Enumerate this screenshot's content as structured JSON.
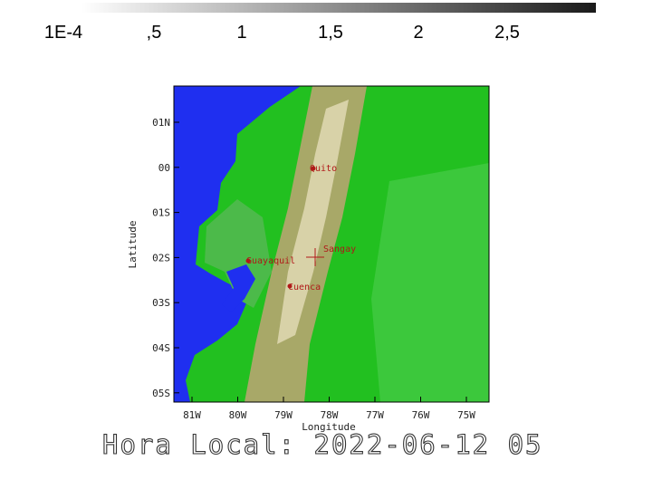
{
  "colorbar": {
    "labels": [
      "1E-4",
      ",5",
      "1",
      "1,5",
      "2",
      "2,5"
    ]
  },
  "map": {
    "lat_labels": [
      "01N",
      "00",
      "01S",
      "02S",
      "03S",
      "04S",
      "05S"
    ],
    "lon_labels": [
      "81W",
      "80W",
      "79W",
      "78W",
      "77W",
      "76W",
      "75W"
    ],
    "x_label": "Longitude",
    "y_label": "Latitude",
    "places": [
      "Quito",
      "Sangay",
      "Guayaquil",
      "Cuenca"
    ]
  },
  "footer": "Hora Local: 2022-06-12 05"
}
